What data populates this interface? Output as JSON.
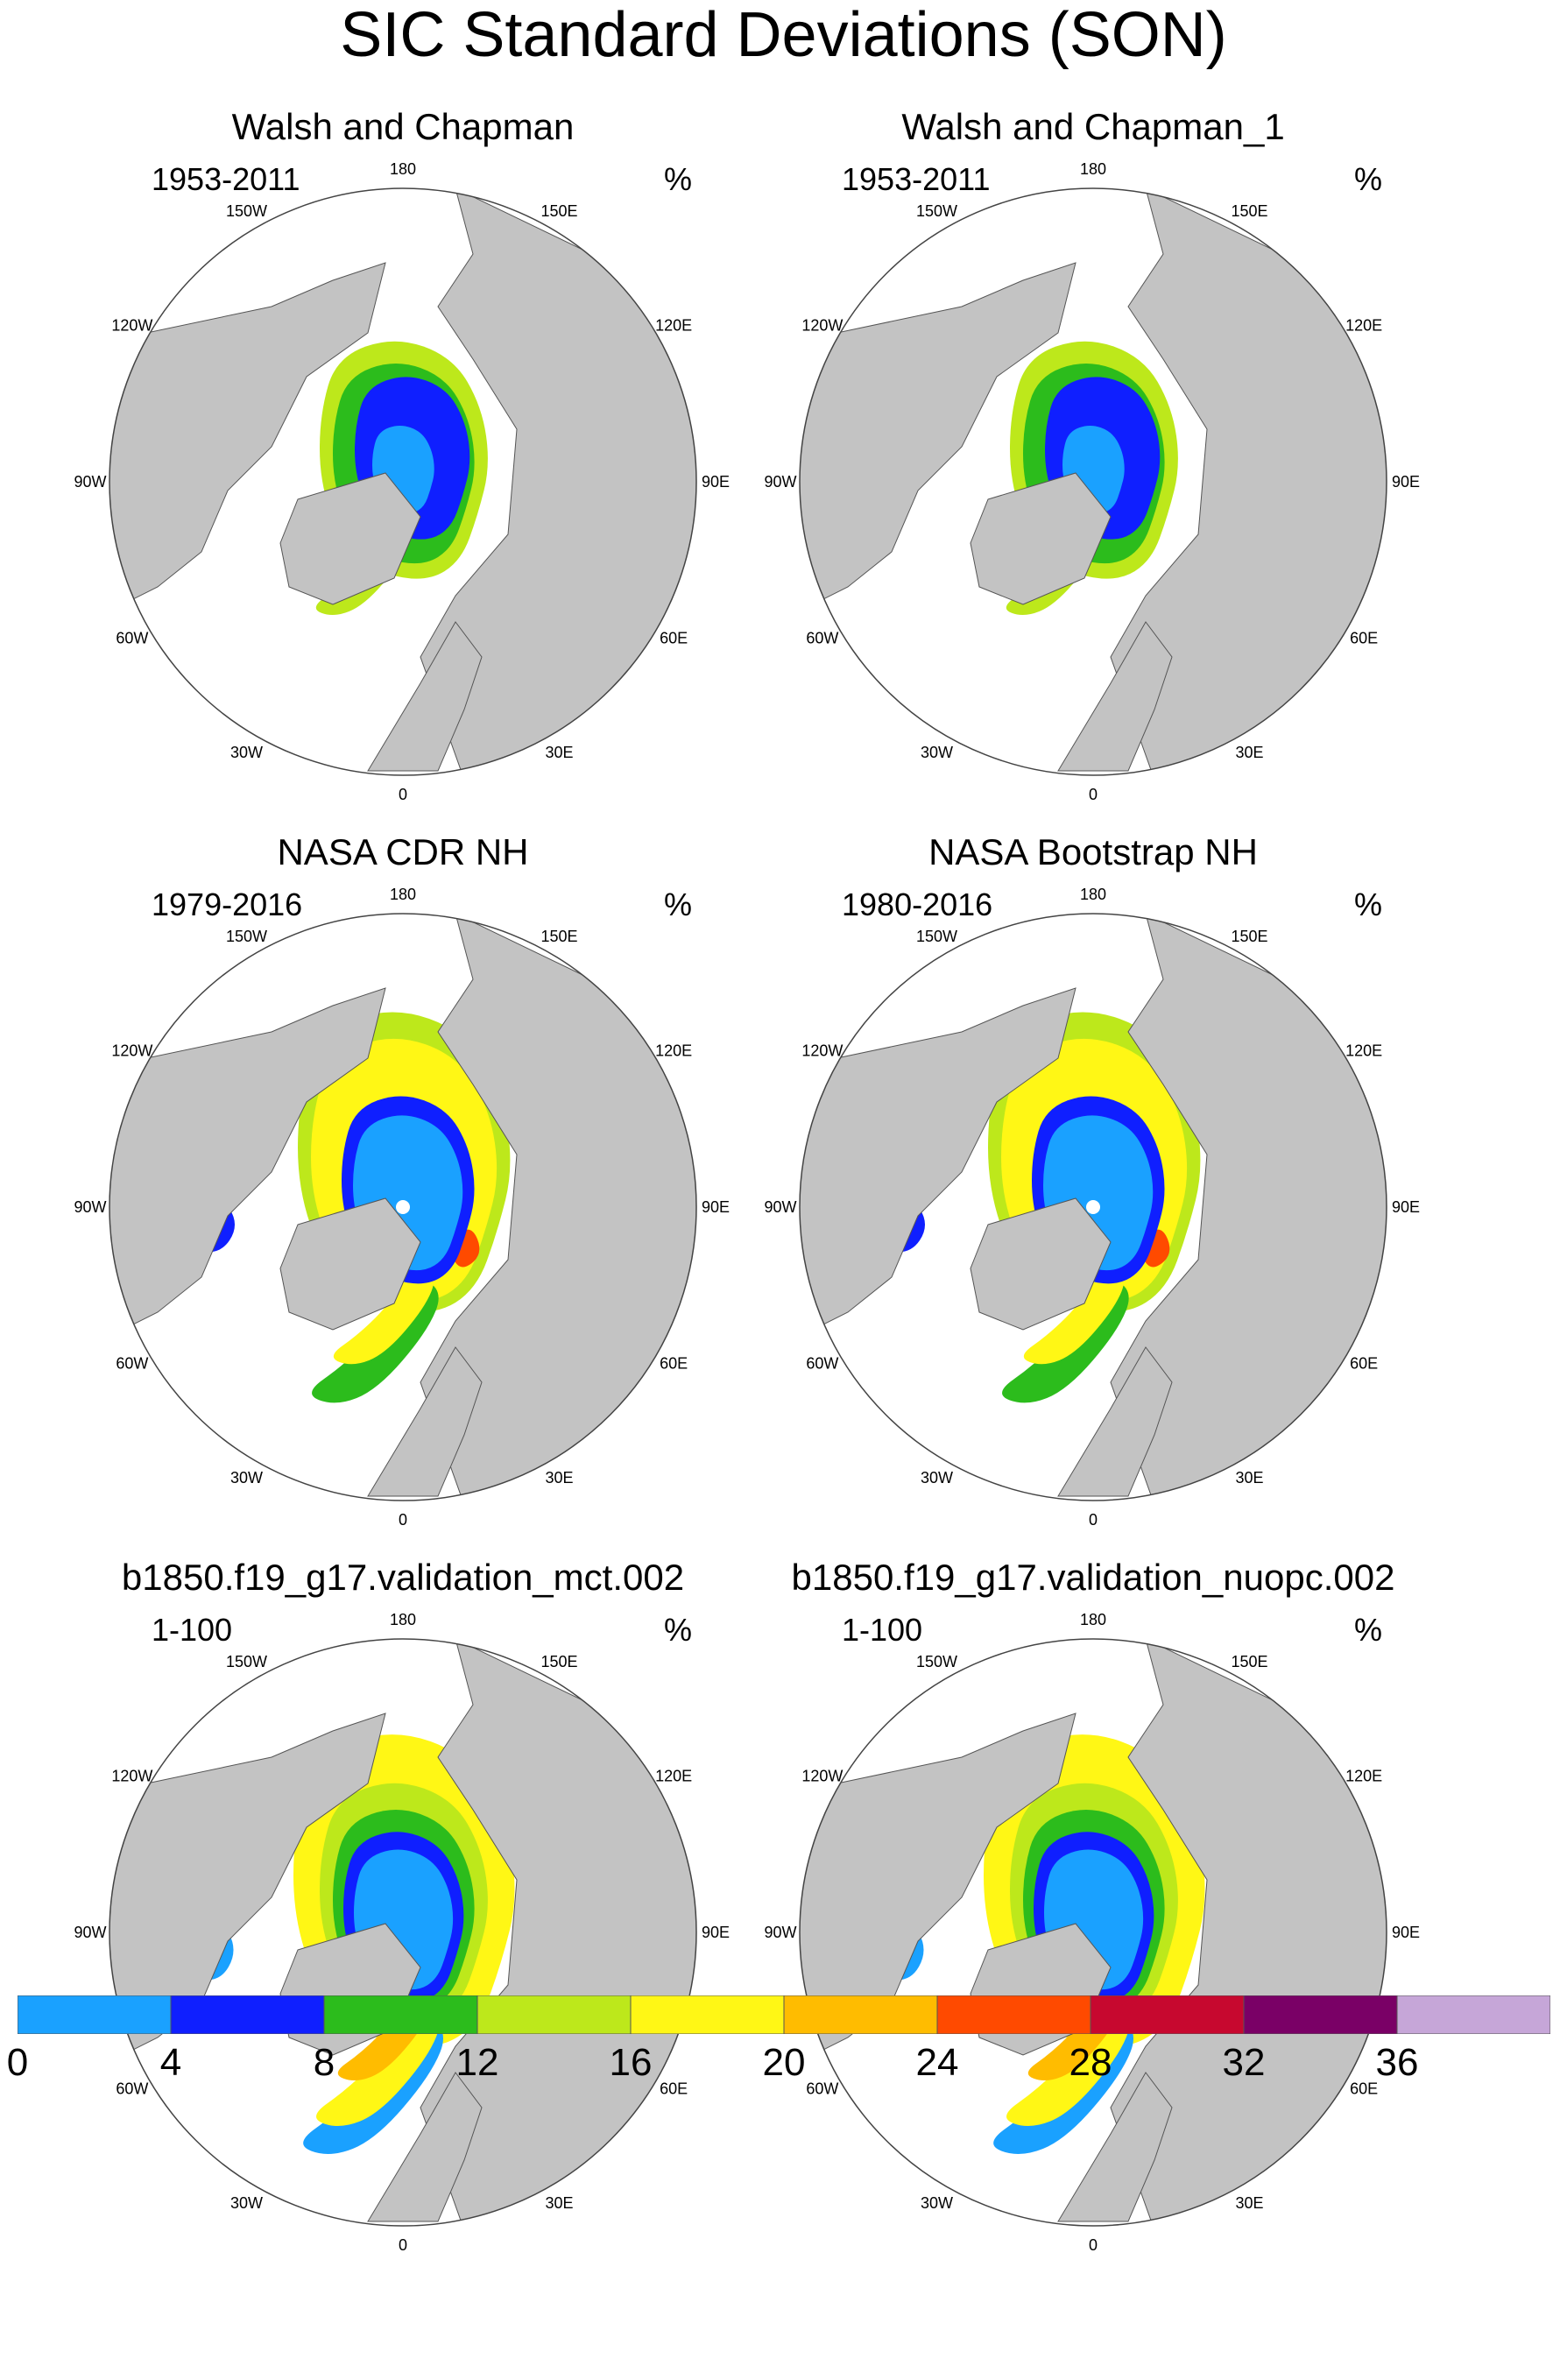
{
  "title": "SIC Standard Deviations (SON)",
  "panels": [
    {
      "title": "Walsh and Chapman",
      "period": "1953-2011",
      "unit": "%",
      "pattern": "observed_old"
    },
    {
      "title": "Walsh and Chapman_1",
      "period": "1953-2011",
      "unit": "%",
      "pattern": "observed_old"
    },
    {
      "title": "NASA CDR NH",
      "period": "1979-2016",
      "unit": "%",
      "pattern": "observed_sat"
    },
    {
      "title": "NASA Bootstrap NH",
      "period": "1980-2016",
      "unit": "%",
      "pattern": "observed_sat"
    },
    {
      "title": "b1850.f19_g17.validation_mct.002",
      "period": "1-100",
      "unit": "%",
      "pattern": "model"
    },
    {
      "title": "b1850.f19_g17.validation_nuopc.002",
      "period": "1-100",
      "unit": "%",
      "pattern": "model"
    }
  ],
  "longitude_labels": [
    "180",
    "150E",
    "120E",
    "90E",
    "60E",
    "30E",
    "0",
    "30W",
    "60W",
    "90W",
    "120W",
    "150W"
  ],
  "colorbar": {
    "labels": [
      "0",
      "4",
      "8",
      "12",
      "16",
      "20",
      "24",
      "28",
      "32",
      "36"
    ],
    "colors": [
      "#1aa1ff",
      "#0f1fff",
      "#2cbc1c",
      "#bde81b",
      "#fff715",
      "#ffbc00",
      "#ff4a00",
      "#c7082f",
      "#7a0066",
      "#c6a6d8"
    ]
  },
  "map_colors": {
    "land": "#c3c3c3",
    "ocean": "#ffffff",
    "outline": "#444444"
  }
}
